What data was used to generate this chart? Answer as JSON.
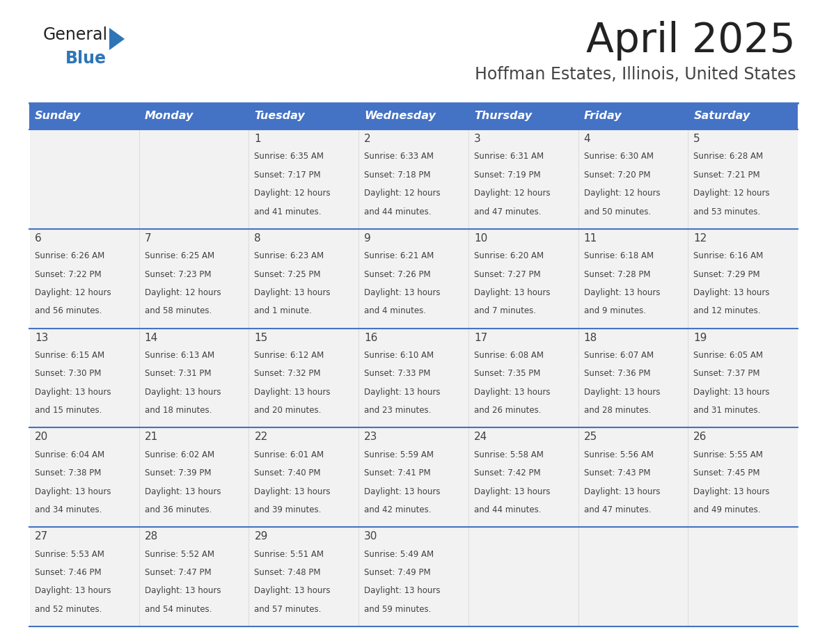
{
  "title": "April 2025",
  "subtitle": "Hoffman Estates, Illinois, United States",
  "days_of_week": [
    "Sunday",
    "Monday",
    "Tuesday",
    "Wednesday",
    "Thursday",
    "Friday",
    "Saturday"
  ],
  "header_bg": "#4472C4",
  "header_text_color": "#FFFFFF",
  "cell_bg": "#F2F2F2",
  "border_color": "#4472C4",
  "text_color": "#404040",
  "title_color": "#222222",
  "subtitle_color": "#444444",
  "logo_general_color": "#222222",
  "logo_blue_color": "#2E75B6",
  "weeks": [
    [
      {
        "day": null,
        "sunrise": null,
        "sunset": null,
        "daylight": null
      },
      {
        "day": null,
        "sunrise": null,
        "sunset": null,
        "daylight": null
      },
      {
        "day": 1,
        "sunrise": "Sunrise: 6:35 AM",
        "sunset": "Sunset: 7:17 PM",
        "daylight": "Daylight: 12 hours\nand 41 minutes."
      },
      {
        "day": 2,
        "sunrise": "Sunrise: 6:33 AM",
        "sunset": "Sunset: 7:18 PM",
        "daylight": "Daylight: 12 hours\nand 44 minutes."
      },
      {
        "day": 3,
        "sunrise": "Sunrise: 6:31 AM",
        "sunset": "Sunset: 7:19 PM",
        "daylight": "Daylight: 12 hours\nand 47 minutes."
      },
      {
        "day": 4,
        "sunrise": "Sunrise: 6:30 AM",
        "sunset": "Sunset: 7:20 PM",
        "daylight": "Daylight: 12 hours\nand 50 minutes."
      },
      {
        "day": 5,
        "sunrise": "Sunrise: 6:28 AM",
        "sunset": "Sunset: 7:21 PM",
        "daylight": "Daylight: 12 hours\nand 53 minutes."
      }
    ],
    [
      {
        "day": 6,
        "sunrise": "Sunrise: 6:26 AM",
        "sunset": "Sunset: 7:22 PM",
        "daylight": "Daylight: 12 hours\nand 56 minutes."
      },
      {
        "day": 7,
        "sunrise": "Sunrise: 6:25 AM",
        "sunset": "Sunset: 7:23 PM",
        "daylight": "Daylight: 12 hours\nand 58 minutes."
      },
      {
        "day": 8,
        "sunrise": "Sunrise: 6:23 AM",
        "sunset": "Sunset: 7:25 PM",
        "daylight": "Daylight: 13 hours\nand 1 minute."
      },
      {
        "day": 9,
        "sunrise": "Sunrise: 6:21 AM",
        "sunset": "Sunset: 7:26 PM",
        "daylight": "Daylight: 13 hours\nand 4 minutes."
      },
      {
        "day": 10,
        "sunrise": "Sunrise: 6:20 AM",
        "sunset": "Sunset: 7:27 PM",
        "daylight": "Daylight: 13 hours\nand 7 minutes."
      },
      {
        "day": 11,
        "sunrise": "Sunrise: 6:18 AM",
        "sunset": "Sunset: 7:28 PM",
        "daylight": "Daylight: 13 hours\nand 9 minutes."
      },
      {
        "day": 12,
        "sunrise": "Sunrise: 6:16 AM",
        "sunset": "Sunset: 7:29 PM",
        "daylight": "Daylight: 13 hours\nand 12 minutes."
      }
    ],
    [
      {
        "day": 13,
        "sunrise": "Sunrise: 6:15 AM",
        "sunset": "Sunset: 7:30 PM",
        "daylight": "Daylight: 13 hours\nand 15 minutes."
      },
      {
        "day": 14,
        "sunrise": "Sunrise: 6:13 AM",
        "sunset": "Sunset: 7:31 PM",
        "daylight": "Daylight: 13 hours\nand 18 minutes."
      },
      {
        "day": 15,
        "sunrise": "Sunrise: 6:12 AM",
        "sunset": "Sunset: 7:32 PM",
        "daylight": "Daylight: 13 hours\nand 20 minutes."
      },
      {
        "day": 16,
        "sunrise": "Sunrise: 6:10 AM",
        "sunset": "Sunset: 7:33 PM",
        "daylight": "Daylight: 13 hours\nand 23 minutes."
      },
      {
        "day": 17,
        "sunrise": "Sunrise: 6:08 AM",
        "sunset": "Sunset: 7:35 PM",
        "daylight": "Daylight: 13 hours\nand 26 minutes."
      },
      {
        "day": 18,
        "sunrise": "Sunrise: 6:07 AM",
        "sunset": "Sunset: 7:36 PM",
        "daylight": "Daylight: 13 hours\nand 28 minutes."
      },
      {
        "day": 19,
        "sunrise": "Sunrise: 6:05 AM",
        "sunset": "Sunset: 7:37 PM",
        "daylight": "Daylight: 13 hours\nand 31 minutes."
      }
    ],
    [
      {
        "day": 20,
        "sunrise": "Sunrise: 6:04 AM",
        "sunset": "Sunset: 7:38 PM",
        "daylight": "Daylight: 13 hours\nand 34 minutes."
      },
      {
        "day": 21,
        "sunrise": "Sunrise: 6:02 AM",
        "sunset": "Sunset: 7:39 PM",
        "daylight": "Daylight: 13 hours\nand 36 minutes."
      },
      {
        "day": 22,
        "sunrise": "Sunrise: 6:01 AM",
        "sunset": "Sunset: 7:40 PM",
        "daylight": "Daylight: 13 hours\nand 39 minutes."
      },
      {
        "day": 23,
        "sunrise": "Sunrise: 5:59 AM",
        "sunset": "Sunset: 7:41 PM",
        "daylight": "Daylight: 13 hours\nand 42 minutes."
      },
      {
        "day": 24,
        "sunrise": "Sunrise: 5:58 AM",
        "sunset": "Sunset: 7:42 PM",
        "daylight": "Daylight: 13 hours\nand 44 minutes."
      },
      {
        "day": 25,
        "sunrise": "Sunrise: 5:56 AM",
        "sunset": "Sunset: 7:43 PM",
        "daylight": "Daylight: 13 hours\nand 47 minutes."
      },
      {
        "day": 26,
        "sunrise": "Sunrise: 5:55 AM",
        "sunset": "Sunset: 7:45 PM",
        "daylight": "Daylight: 13 hours\nand 49 minutes."
      }
    ],
    [
      {
        "day": 27,
        "sunrise": "Sunrise: 5:53 AM",
        "sunset": "Sunset: 7:46 PM",
        "daylight": "Daylight: 13 hours\nand 52 minutes."
      },
      {
        "day": 28,
        "sunrise": "Sunrise: 5:52 AM",
        "sunset": "Sunset: 7:47 PM",
        "daylight": "Daylight: 13 hours\nand 54 minutes."
      },
      {
        "day": 29,
        "sunrise": "Sunrise: 5:51 AM",
        "sunset": "Sunset: 7:48 PM",
        "daylight": "Daylight: 13 hours\nand 57 minutes."
      },
      {
        "day": 30,
        "sunrise": "Sunrise: 5:49 AM",
        "sunset": "Sunset: 7:49 PM",
        "daylight": "Daylight: 13 hours\nand 59 minutes."
      },
      {
        "day": null,
        "sunrise": null,
        "sunset": null,
        "daylight": null
      },
      {
        "day": null,
        "sunrise": null,
        "sunset": null,
        "daylight": null
      },
      {
        "day": null,
        "sunrise": null,
        "sunset": null,
        "daylight": null
      }
    ]
  ]
}
